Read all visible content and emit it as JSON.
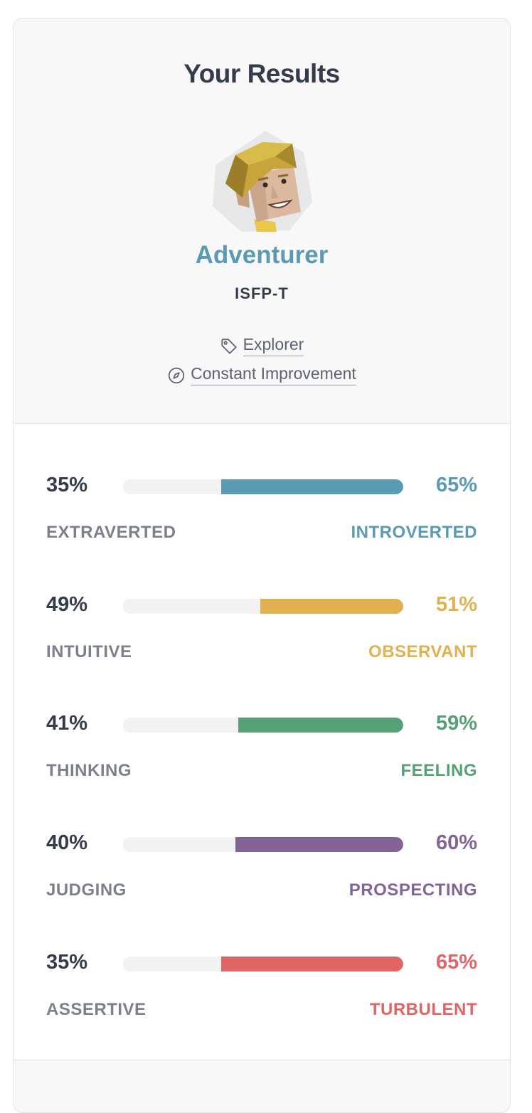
{
  "header": {
    "title": "Your Results",
    "type_name": "Adventurer",
    "type_code": "ISFP-T",
    "role": {
      "label": "Explorer",
      "icon": "tag-icon"
    },
    "strategy": {
      "label": "Constant Improvement",
      "icon": "compass-icon"
    }
  },
  "colors": {
    "energy": "#5a9ab3",
    "mind": "#e1b04f",
    "nature": "#56a076",
    "tactics": "#836496",
    "identity": "#e06567",
    "text_dark": "#343c4b",
    "text_muted": "#7b808c"
  },
  "traits": [
    {
      "left_pct": "35%",
      "right_pct": "65%",
      "left_label": "EXTRAVERTED",
      "right_label": "INTROVERTED",
      "fill_percent": 65,
      "color": "#5a9ab3"
    },
    {
      "left_pct": "49%",
      "right_pct": "51%",
      "left_label": "INTUITIVE",
      "right_label": "OBSERVANT",
      "fill_percent": 51,
      "color": "#e1b04f"
    },
    {
      "left_pct": "41%",
      "right_pct": "59%",
      "left_label": "THINKING",
      "right_label": "FEELING",
      "fill_percent": 59,
      "color": "#56a076"
    },
    {
      "left_pct": "40%",
      "right_pct": "60%",
      "left_label": "JUDGING",
      "right_label": "PROSPECTING",
      "fill_percent": 60,
      "color": "#836496"
    },
    {
      "left_pct": "35%",
      "right_pct": "65%",
      "left_label": "ASSERTIVE",
      "right_label": "TURBULENT",
      "fill_percent": 65,
      "color": "#e06567"
    }
  ]
}
